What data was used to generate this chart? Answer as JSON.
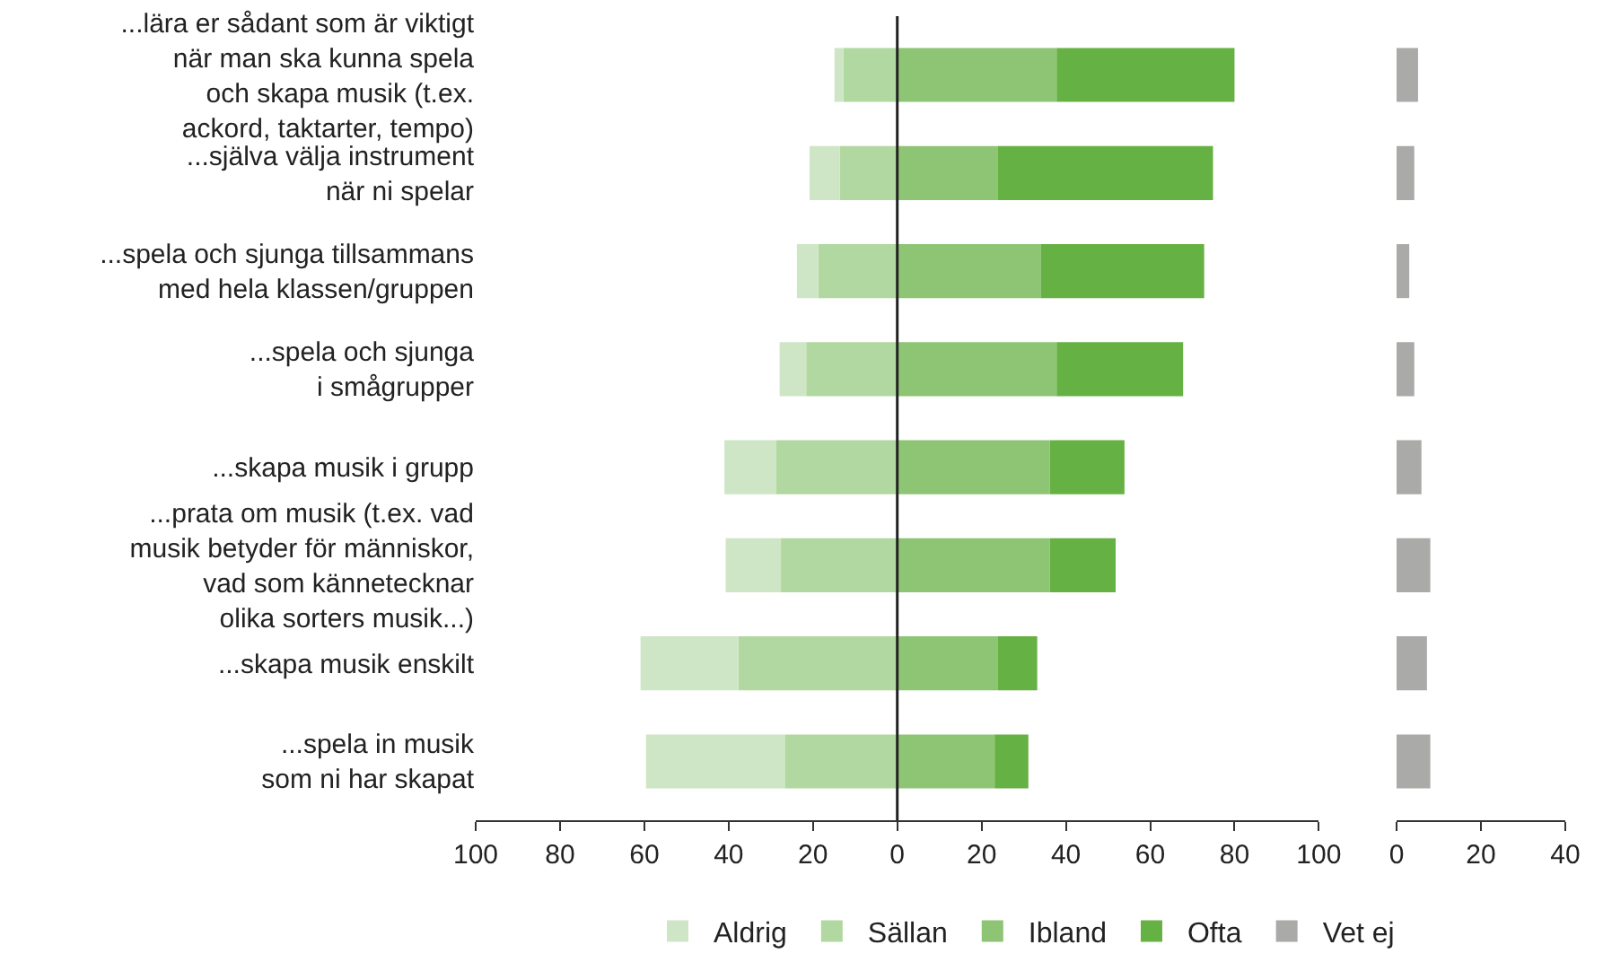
{
  "chart_data": [
    {
      "type": "bar",
      "orientation": "horizontal",
      "stacked": true,
      "categories": [
        "...lära er sådant som är viktigt\nnär man ska kunna spela\noch skapa musik (t.ex.\nackord, taktarter, tempo)",
        "...själva välja instrument\nnär ni spelar",
        "...spela och sjunga tillsammans\nmed hela klassen/gruppen",
        "...spela och sjunga\ni smågrupper",
        "...skapa musik i grupp",
        "...prata om musik (t.ex. vad\nmusik betyder för människor,\nvad som kännetecknar\nolika sorters musik...)",
        "...skapa musik enskilt",
        "...spela in musik\nsom ni har skapat"
      ],
      "series": [
        {
          "name": "Sällan",
          "color": "#b2d8a1",
          "values": [
            -12.8,
            -13.6,
            -18.7,
            -21.6,
            -28.8,
            -27.6,
            -37.7,
            -26.7
          ]
        },
        {
          "name": "Aldrig",
          "color": "#cfe6c6",
          "values": [
            -2.1,
            -7.2,
            -5.1,
            -6.3,
            -12.2,
            -13.1,
            -23.2,
            -32.9
          ]
        },
        {
          "name": "Ibland",
          "color": "#8ec575",
          "values": [
            37.8,
            23.9,
            34.0,
            37.8,
            36.2,
            36.2,
            23.9,
            23.1
          ]
        },
        {
          "name": "Ofta",
          "color": "#66b143",
          "values": [
            42.2,
            51.0,
            38.8,
            30.0,
            17.7,
            15.6,
            9.3,
            8.0
          ]
        }
      ],
      "xlim": [
        -100,
        100
      ],
      "xticks": [
        {
          "value": -100,
          "label": "100"
        },
        {
          "value": -80,
          "label": "80"
        },
        {
          "value": -60,
          "label": "60"
        },
        {
          "value": -40,
          "label": "40"
        },
        {
          "value": -20,
          "label": "20"
        },
        0,
        20,
        40,
        60,
        80,
        100
      ],
      "ref_lines": [
        {
          "axis": "x",
          "value": 0,
          "color": "#222222"
        }
      ],
      "legend": "bottom"
    },
    {
      "type": "bar",
      "orientation": "horizontal",
      "categories": [
        null,
        null,
        null,
        null,
        null,
        null,
        null,
        null
      ],
      "series": [
        {
          "name": "Vet ej",
          "color": "#aaaaa8",
          "values": [
            5.1,
            4.2,
            3.0,
            4.2,
            5.9,
            8.0,
            7.2,
            8.0
          ]
        }
      ],
      "xlim": [
        0,
        40
      ],
      "xticks": [
        0,
        20,
        40
      ],
      "tick_labels": "x",
      "legend": "bottom"
    }
  ]
}
